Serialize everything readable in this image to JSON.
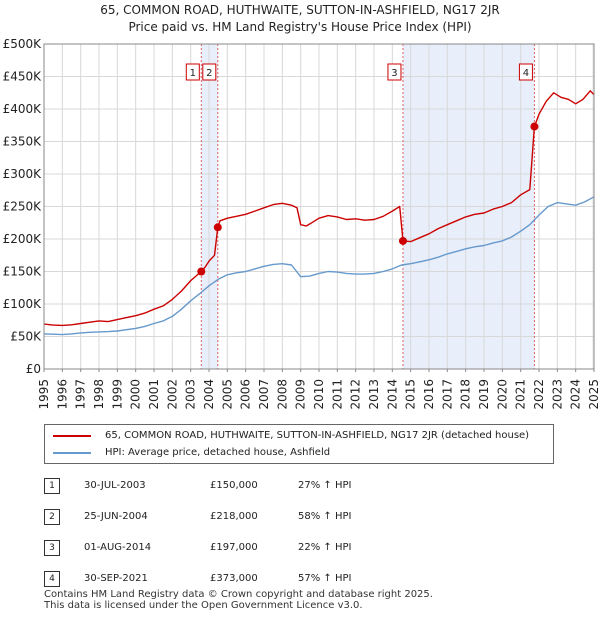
{
  "chart_data": {
    "type": "line",
    "title": "65, COMMON ROAD, HUTHWAITE, SUTTON-IN-ASHFIELD, NG17 2JR",
    "subtitle": "Price paid vs. HM Land Registry's House Price Index (HPI)",
    "xlim": [
      1995,
      2025
    ],
    "ylim": [
      0,
      500000
    ],
    "y_ticks": [
      0,
      50000,
      100000,
      150000,
      200000,
      250000,
      300000,
      350000,
      400000,
      450000,
      500000
    ],
    "y_tick_labels": [
      "£0",
      "£50K",
      "£100K",
      "£150K",
      "£200K",
      "£250K",
      "£300K",
      "£350K",
      "£400K",
      "£450K",
      "£500K"
    ],
    "x_ticks": [
      1995,
      1996,
      1997,
      1998,
      1999,
      2000,
      2001,
      2002,
      2003,
      2004,
      2005,
      2006,
      2007,
      2008,
      2009,
      2010,
      2011,
      2012,
      2013,
      2014,
      2015,
      2016,
      2017,
      2018,
      2019,
      2020,
      2021,
      2022,
      2023,
      2024,
      2025
    ],
    "x_tick_labels": [
      "1995",
      "1996",
      "1997",
      "1998",
      "1999",
      "2000",
      "2001",
      "2002",
      "2003",
      "2004",
      "2005",
      "2006",
      "2007",
      "2008",
      "2009",
      "2010",
      "2011",
      "2012",
      "2013",
      "2014",
      "2015",
      "2016",
      "2017",
      "2018",
      "2019",
      "2020",
      "2021",
      "2022",
      "2023",
      "2024",
      "2025"
    ],
    "shaded_periods": [
      [
        2003.58,
        2004.48
      ],
      [
        2014.58,
        2021.75
      ]
    ],
    "series": [
      {
        "name": "65, COMMON ROAD, HUTHWAITE, SUTTON-IN-ASHFIELD, NG17 2JR (detached house)",
        "color": "#cc0000",
        "points": [
          [
            1995.0,
            69000
          ],
          [
            1995.5,
            67500
          ],
          [
            1996.0,
            67000
          ],
          [
            1996.5,
            68000
          ],
          [
            1997.0,
            70000
          ],
          [
            1997.5,
            72000
          ],
          [
            1998.0,
            74000
          ],
          [
            1998.5,
            73000
          ],
          [
            1999.0,
            76000
          ],
          [
            1999.5,
            79000
          ],
          [
            2000.0,
            82000
          ],
          [
            2000.5,
            86000
          ],
          [
            2001.0,
            92000
          ],
          [
            2001.5,
            97000
          ],
          [
            2002.0,
            107000
          ],
          [
            2002.5,
            120000
          ],
          [
            2003.0,
            136000
          ],
          [
            2003.58,
            150000
          ],
          [
            2003.8,
            157000
          ],
          [
            2004.0,
            166000
          ],
          [
            2004.3,
            175000
          ],
          [
            2004.48,
            218000
          ],
          [
            2004.6,
            228000
          ],
          [
            2005.0,
            232000
          ],
          [
            2005.5,
            235000
          ],
          [
            2006.0,
            238000
          ],
          [
            2006.5,
            243000
          ],
          [
            2007.0,
            248000
          ],
          [
            2007.5,
            253000
          ],
          [
            2008.0,
            255000
          ],
          [
            2008.5,
            252000
          ],
          [
            2008.8,
            248000
          ],
          [
            2009.0,
            222000
          ],
          [
            2009.3,
            220000
          ],
          [
            2009.6,
            225000
          ],
          [
            2010.0,
            232000
          ],
          [
            2010.5,
            236000
          ],
          [
            2011.0,
            234000
          ],
          [
            2011.5,
            230000
          ],
          [
            2012.0,
            231000
          ],
          [
            2012.5,
            229000
          ],
          [
            2013.0,
            230000
          ],
          [
            2013.5,
            235000
          ],
          [
            2014.0,
            243000
          ],
          [
            2014.4,
            250000
          ],
          [
            2014.58,
            197000
          ],
          [
            2015.0,
            196000
          ],
          [
            2015.5,
            202000
          ],
          [
            2016.0,
            208000
          ],
          [
            2016.5,
            216000
          ],
          [
            2017.0,
            222000
          ],
          [
            2017.5,
            228000
          ],
          [
            2018.0,
            234000
          ],
          [
            2018.5,
            238000
          ],
          [
            2019.0,
            240000
          ],
          [
            2019.5,
            246000
          ],
          [
            2020.0,
            250000
          ],
          [
            2020.5,
            256000
          ],
          [
            2021.0,
            268000
          ],
          [
            2021.5,
            276000
          ],
          [
            2021.75,
            373000
          ],
          [
            2022.0,
            392000
          ],
          [
            2022.4,
            412000
          ],
          [
            2022.8,
            425000
          ],
          [
            2023.2,
            418000
          ],
          [
            2023.6,
            415000
          ],
          [
            2024.0,
            408000
          ],
          [
            2024.4,
            415000
          ],
          [
            2024.8,
            428000
          ],
          [
            2025.0,
            422000
          ]
        ]
      },
      {
        "name": "HPI: Average price, detached house, Ashfield",
        "color": "#6699cc",
        "points": [
          [
            1995.0,
            54000
          ],
          [
            1995.5,
            53500
          ],
          [
            1996.0,
            53000
          ],
          [
            1996.5,
            54000
          ],
          [
            1997.0,
            55500
          ],
          [
            1997.5,
            56500
          ],
          [
            1998.0,
            57000
          ],
          [
            1998.5,
            57500
          ],
          [
            1999.0,
            58500
          ],
          [
            1999.5,
            60500
          ],
          [
            2000.0,
            62500
          ],
          [
            2000.5,
            65500
          ],
          [
            2001.0,
            70000
          ],
          [
            2001.5,
            74000
          ],
          [
            2002.0,
            81000
          ],
          [
            2002.5,
            92000
          ],
          [
            2003.0,
            105000
          ],
          [
            2003.5,
            116000
          ],
          [
            2004.0,
            128000
          ],
          [
            2004.5,
            138000
          ],
          [
            2005.0,
            145000
          ],
          [
            2005.5,
            148000
          ],
          [
            2006.0,
            150000
          ],
          [
            2006.5,
            154000
          ],
          [
            2007.0,
            158000
          ],
          [
            2007.5,
            161000
          ],
          [
            2008.0,
            162000
          ],
          [
            2008.5,
            160000
          ],
          [
            2009.0,
            142000
          ],
          [
            2009.5,
            143000
          ],
          [
            2010.0,
            147000
          ],
          [
            2010.5,
            150000
          ],
          [
            2011.0,
            149000
          ],
          [
            2011.5,
            147000
          ],
          [
            2012.0,
            146000
          ],
          [
            2012.5,
            146000
          ],
          [
            2013.0,
            147000
          ],
          [
            2013.5,
            150000
          ],
          [
            2014.0,
            154000
          ],
          [
            2014.5,
            160000
          ],
          [
            2015.0,
            162000
          ],
          [
            2015.5,
            165000
          ],
          [
            2016.0,
            168000
          ],
          [
            2016.5,
            172000
          ],
          [
            2017.0,
            177000
          ],
          [
            2017.5,
            181000
          ],
          [
            2018.0,
            185000
          ],
          [
            2018.5,
            188000
          ],
          [
            2019.0,
            190000
          ],
          [
            2019.5,
            194000
          ],
          [
            2020.0,
            197000
          ],
          [
            2020.5,
            203000
          ],
          [
            2021.0,
            212000
          ],
          [
            2021.5,
            222000
          ],
          [
            2022.0,
            237000
          ],
          [
            2022.5,
            250000
          ],
          [
            2023.0,
            256000
          ],
          [
            2023.5,
            254000
          ],
          [
            2024.0,
            252000
          ],
          [
            2024.5,
            257000
          ],
          [
            2025.0,
            265000
          ]
        ]
      }
    ],
    "sales": [
      {
        "label": "1",
        "date": "30-JUL-2003",
        "year": 2003.58,
        "price": 150000
      },
      {
        "label": "2",
        "date": "25-JUN-2004",
        "year": 2004.48,
        "price": 218000
      },
      {
        "label": "3",
        "date": "01-AUG-2014",
        "year": 2014.58,
        "price": 197000
      },
      {
        "label": "4",
        "date": "30-SEP-2021",
        "year": 2021.75,
        "price": 373000
      }
    ]
  },
  "legend": {
    "property_label": "65, COMMON ROAD, HUTHWAITE, SUTTON-IN-ASHFIELD, NG17 2JR (detached house)",
    "hpi_label": "HPI: Average price, detached house, Ashfield",
    "property_color": "#cc0000",
    "hpi_color": "#6699cc"
  },
  "table": [
    {
      "num": "1",
      "date": "30-JUL-2003",
      "price": "£150,000",
      "hpi": "27% ↑ HPI"
    },
    {
      "num": "2",
      "date": "25-JUN-2004",
      "price": "£218,000",
      "hpi": "58% ↑ HPI"
    },
    {
      "num": "3",
      "date": "01-AUG-2014",
      "price": "£197,000",
      "hpi": "22% ↑ HPI"
    },
    {
      "num": "4",
      "date": "30-SEP-2021",
      "price": "£373,000",
      "hpi": "57% ↑ HPI"
    }
  ],
  "footer": {
    "line1": "Contains HM Land Registry data © Crown copyright and database right 2025.",
    "line2": "This data is licensed under the Open Government Licence v3.0."
  }
}
